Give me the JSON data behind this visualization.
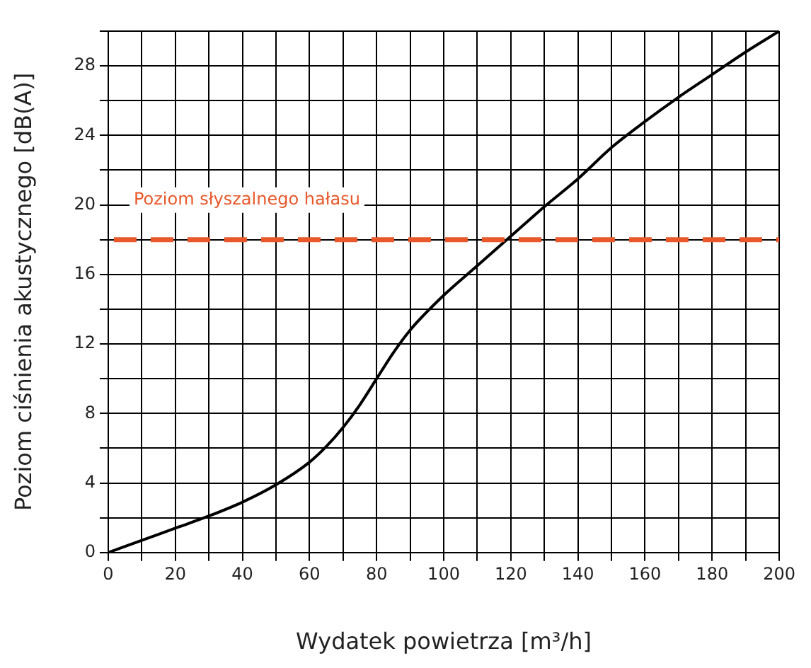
{
  "chart_data": {
    "type": "line",
    "xlabel": "Wydatek powietrza [m³/h]",
    "ylabel": "Poziom ciśnienia akustycznego [dB(A)]",
    "series": [
      {
        "color": "#000000",
        "x": [
          0,
          10,
          20,
          30,
          40,
          50,
          60,
          65,
          70,
          75,
          80,
          85,
          90,
          100,
          110,
          120,
          130,
          140,
          150,
          160,
          170,
          180,
          190,
          200
        ],
        "values": [
          0,
          0.7,
          1.4,
          2.1,
          2.9,
          3.9,
          5.2,
          6.1,
          7.2,
          8.5,
          10,
          11.5,
          12.8,
          14.8,
          16.5,
          18.2,
          19.9,
          21.5,
          23.3,
          24.8,
          26.2,
          27.5,
          28.8,
          30
        ]
      }
    ],
    "xlim": [
      0,
      200
    ],
    "ylim": [
      0,
      30
    ],
    "xticks": [
      0,
      {
        "value": 10,
        "label": null
      },
      20,
      {
        "value": 30,
        "label": null
      },
      40,
      {
        "value": 50,
        "label": null
      },
      60,
      {
        "value": 70,
        "label": null
      },
      80,
      {
        "value": 90,
        "label": null
      },
      100,
      {
        "value": 110,
        "label": null
      },
      120,
      {
        "value": 130,
        "label": null
      },
      140,
      {
        "value": 150,
        "label": null
      },
      160,
      {
        "value": 170,
        "label": null
      },
      180,
      {
        "value": 190,
        "label": null
      },
      200
    ],
    "yticks": [
      0,
      {
        "value": 2,
        "label": null
      },
      4,
      {
        "value": 6,
        "label": null
      },
      8,
      {
        "value": 10,
        "label": null
      },
      12,
      {
        "value": 14,
        "label": null
      },
      16,
      {
        "value": 18,
        "label": null
      },
      20,
      {
        "value": 22,
        "label": null
      },
      24,
      {
        "value": 26,
        "label": null
      },
      28,
      {
        "value": 30,
        "label": null
      }
    ],
    "ref_lines": [
      {
        "axis": "y",
        "value": 18,
        "label": "Poziom słyszalnego hałasu",
        "color": "#e8582a",
        "line_style": "dashed"
      }
    ],
    "grid": true,
    "legend": false,
    "marker": "none",
    "line_style": "solid"
  }
}
